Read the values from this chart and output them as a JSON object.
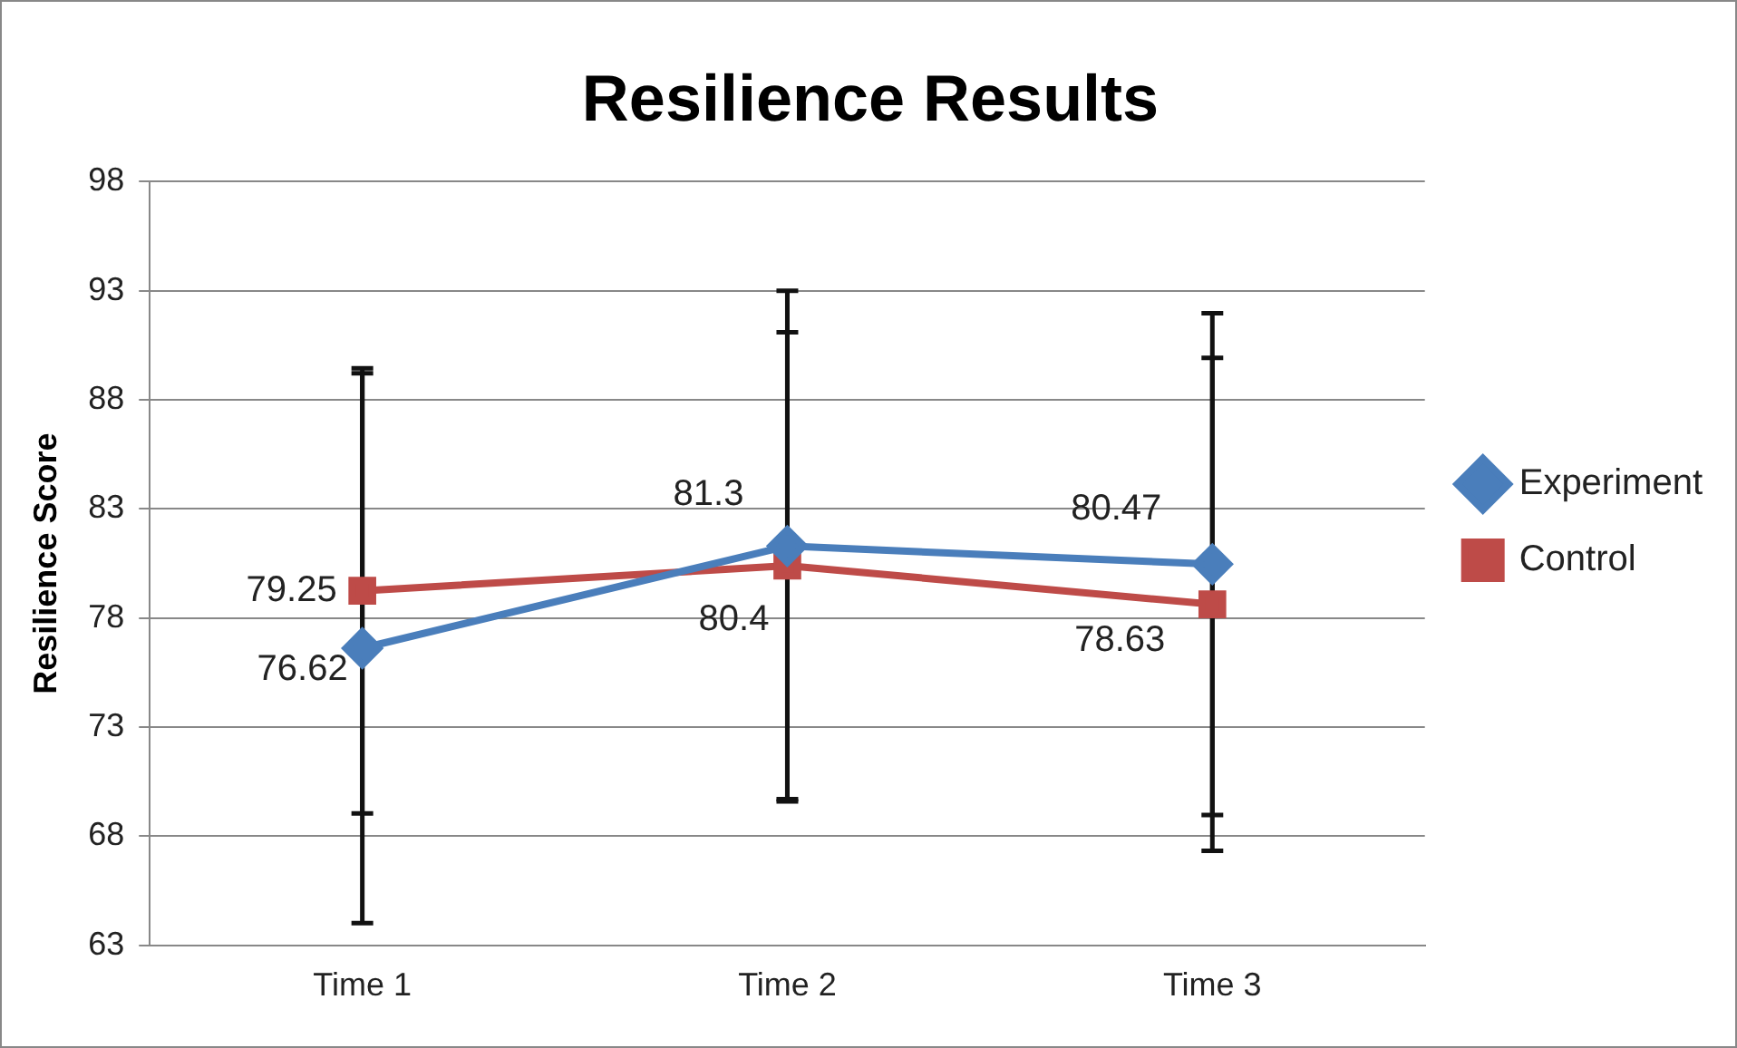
{
  "chart_data": {
    "type": "line",
    "title": "Resilience Results",
    "ylabel": "Resilience Score",
    "categories": [
      "Time 1",
      "Time 2",
      "Time 3"
    ],
    "series": [
      {
        "name": "Experiment",
        "color": "#4a7ebb",
        "values": [
          76.62,
          81.3,
          80.47
        ],
        "errors": [
          12.6,
          11.7,
          11.5
        ],
        "marker": "diamond"
      },
      {
        "name": "Control",
        "color": "#be4b48",
        "values": [
          79.25,
          80.4,
          78.63
        ],
        "errors": [
          10.2,
          10.7,
          11.3
        ],
        "marker": "square"
      }
    ],
    "ylim": [
      63,
      98
    ],
    "yticks": [
      63,
      68,
      73,
      78,
      83,
      88,
      93,
      98
    ],
    "grid": "y",
    "legend": "right",
    "data_labels": true,
    "line_style": "solid"
  }
}
